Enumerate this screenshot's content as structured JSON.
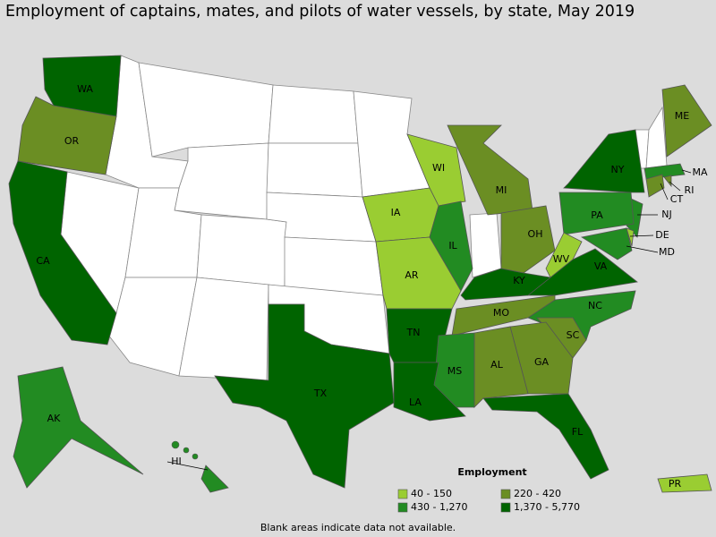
{
  "title": "Employment of captains, mates, and pilots of water vessels, by state, May 2019",
  "legend": {
    "title": "Employment",
    "items": [
      {
        "label": "40 - 150",
        "color": "#9acd32"
      },
      {
        "label": "220 - 420",
        "color": "#6b8e23"
      },
      {
        "label": "430 - 1,270",
        "color": "#228b22"
      },
      {
        "label": "1,370 - 5,770",
        "color": "#006400"
      }
    ]
  },
  "states": [
    {
      "abbr": "WA",
      "class": 3
    },
    {
      "abbr": "OR",
      "class": 1
    },
    {
      "abbr": "CA",
      "class": 3
    },
    {
      "abbr": "AK",
      "class": 2
    },
    {
      "abbr": "HI",
      "class": 2
    },
    {
      "abbr": "ME",
      "class": 1
    },
    {
      "abbr": "MA",
      "class": 2
    },
    {
      "abbr": "RI",
      "class": 1
    },
    {
      "abbr": "CT",
      "class": 1
    },
    {
      "abbr": "NJ",
      "class": 2
    },
    {
      "abbr": "DE",
      "class": 0
    },
    {
      "abbr": "MD",
      "class": 2
    },
    {
      "abbr": "NY",
      "class": 3
    },
    {
      "abbr": "PA",
      "class": 2
    },
    {
      "abbr": "WI",
      "class": 0
    },
    {
      "abbr": "IA",
      "class": 0
    },
    {
      "abbr": "IL",
      "class": 2
    },
    {
      "abbr": "MI",
      "class": 1
    },
    {
      "abbr": "OH",
      "class": 1
    },
    {
      "abbr": "WV",
      "class": 0
    },
    {
      "abbr": "VA",
      "class": 3
    },
    {
      "abbr": "KY",
      "class": 3
    },
    {
      "abbr": "MO",
      "class": 1
    },
    {
      "abbr": "AR",
      "class": 0
    },
    {
      "abbr": "TN",
      "class": 3
    },
    {
      "abbr": "NC",
      "class": 2
    },
    {
      "abbr": "SC",
      "class": 1
    },
    {
      "abbr": "GA",
      "class": 1
    },
    {
      "abbr": "AL",
      "class": 1
    },
    {
      "abbr": "MS",
      "class": 2
    },
    {
      "abbr": "LA",
      "class": 3
    },
    {
      "abbr": "TX",
      "class": 3
    },
    {
      "abbr": "FL",
      "class": 3
    },
    {
      "abbr": "PR",
      "class": 0
    }
  ],
  "note": "Blank areas indicate data not available."
}
